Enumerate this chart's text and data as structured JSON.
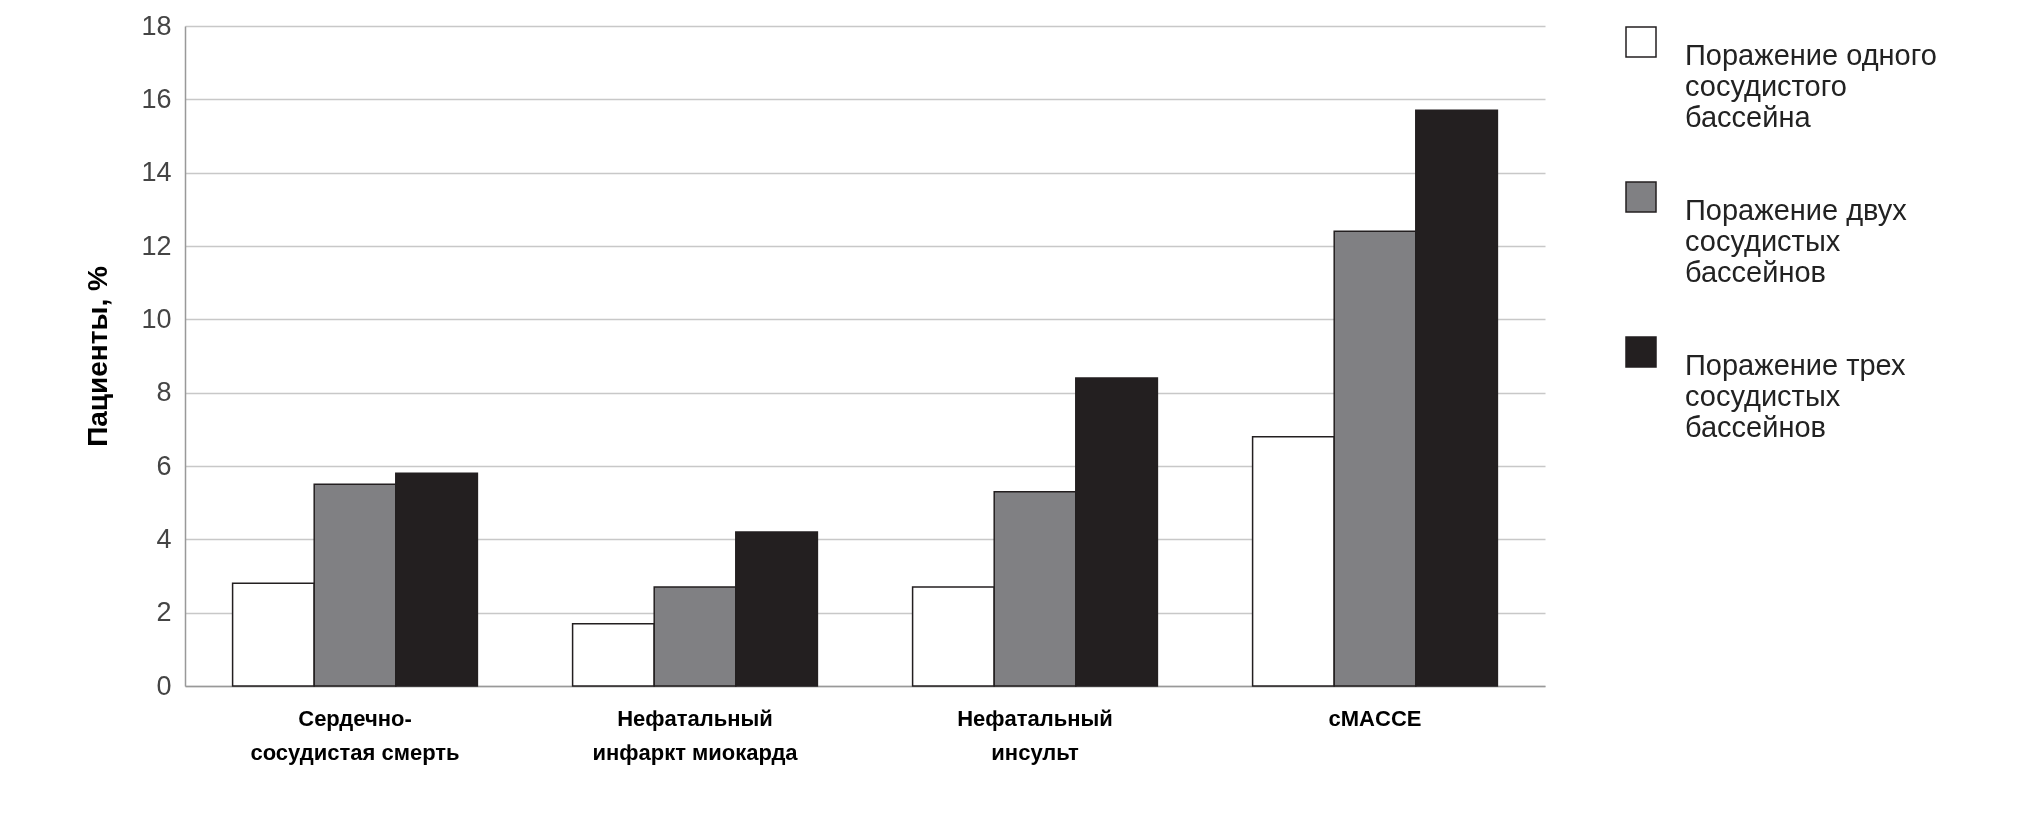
{
  "chart_data": {
    "type": "bar",
    "ylabel": "Пациенты, %",
    "categories": [
      "Сердечно-сосудистая смерть",
      "Нефатальный инфаркт миокарда",
      "Нефатальный инсульт",
      "cMACCE"
    ],
    "series": [
      {
        "name": "Поражение одного сосудистого бассейна",
        "color": "#ffffff",
        "values": [
          2.8,
          1.7,
          2.7,
          6.8
        ]
      },
      {
        "name": "Поражение двух сосудистых бассейнов",
        "color": "#808083",
        "values": [
          5.5,
          2.7,
          5.3,
          12.4
        ]
      },
      {
        "name": "Поражение трех сосудистых бассейнов",
        "color": "#231f20",
        "values": [
          5.8,
          4.2,
          8.4,
          15.7
        ]
      }
    ],
    "ylim": [
      0,
      18
    ],
    "yticks": [
      0,
      2,
      4,
      6,
      8,
      10,
      12,
      14,
      16,
      18
    ],
    "grid": "y",
    "legend": "top right"
  }
}
